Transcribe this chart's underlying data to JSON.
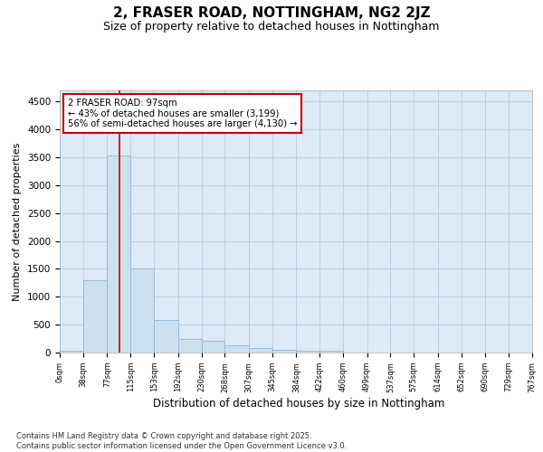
{
  "title": "2, FRASER ROAD, NOTTINGHAM, NG2 2JZ",
  "subtitle": "Size of property relative to detached houses in Nottingham",
  "xlabel": "Distribution of detached houses by size in Nottingham",
  "ylabel": "Number of detached properties",
  "bar_edges": [
    0,
    38,
    77,
    115,
    153,
    192,
    230,
    268,
    307,
    345,
    384,
    422,
    460,
    499,
    537,
    575,
    614,
    652,
    690,
    729,
    767
  ],
  "bar_heights": [
    30,
    1300,
    3540,
    1500,
    590,
    250,
    215,
    130,
    80,
    55,
    30,
    30,
    0,
    0,
    0,
    0,
    0,
    0,
    0,
    0
  ],
  "bar_color": "#cde0f0",
  "bar_edge_color": "#9bbbd8",
  "vline_x": 97,
  "vline_color": "#cc0000",
  "annotation_text": "2 FRASER ROAD: 97sqm\n← 43% of detached houses are smaller (3,199)\n56% of semi-detached houses are larger (4,130) →",
  "annotation_box_color": "#cc0000",
  "annotation_text_color": "#000000",
  "ylim": [
    0,
    4700
  ],
  "yticks": [
    0,
    500,
    1000,
    1500,
    2000,
    2500,
    3000,
    3500,
    4000,
    4500
  ],
  "bg_color": "#ffffff",
  "plot_bg_color": "#ddeaf7",
  "grid_color": "#b8cce0",
  "footnote": "Contains HM Land Registry data © Crown copyright and database right 2025.\nContains public sector information licensed under the Open Government Licence v3.0."
}
